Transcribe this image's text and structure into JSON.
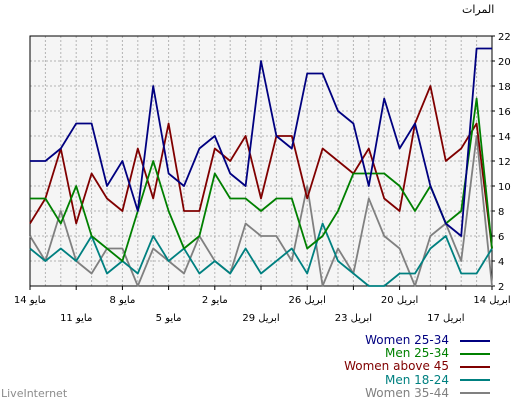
{
  "brand": "LiveInternet",
  "chart_data": {
    "type": "line",
    "ylabel": "المرات",
    "ylim": [
      2,
      22
    ],
    "yticks": [
      2,
      4,
      6,
      8,
      10,
      12,
      14,
      16,
      18,
      20,
      22
    ],
    "y_axis_side": "right",
    "grid": true,
    "legend_position": "bottom-right",
    "x_order": "reverse",
    "x": [
      "2017-05-14",
      "2017-05-13",
      "2017-05-12",
      "2017-05-11",
      "2017-05-10",
      "2017-05-09",
      "2017-05-08",
      "2017-05-07",
      "2017-05-06",
      "2017-05-05",
      "2017-05-04",
      "2017-05-03",
      "2017-05-02",
      "2017-05-01",
      "2017-04-30",
      "2017-04-29",
      "2017-04-28",
      "2017-04-27",
      "2017-04-26",
      "2017-04-25",
      "2017-04-24",
      "2017-04-23",
      "2017-04-22",
      "2017-04-21",
      "2017-04-20",
      "2017-04-19",
      "2017-04-18",
      "2017-04-17",
      "2017-04-16",
      "2017-04-15",
      "2017-04-14"
    ],
    "x_tick_labels": [
      {
        "x": "2017-05-14",
        "label": "14 مايو",
        "row": 1
      },
      {
        "x": "2017-05-11",
        "label": "11 مايو",
        "row": 2
      },
      {
        "x": "2017-05-08",
        "label": "8 مايو",
        "row": 1
      },
      {
        "x": "2017-05-05",
        "label": "5 مايو",
        "row": 2
      },
      {
        "x": "2017-05-02",
        "label": "2 مايو",
        "row": 1
      },
      {
        "x": "2017-04-29",
        "label": "29 ابريل",
        "row": 2
      },
      {
        "x": "2017-04-26",
        "label": "26 ابريل",
        "row": 1
      },
      {
        "x": "2017-04-23",
        "label": "23 ابريل",
        "row": 2
      },
      {
        "x": "2017-04-20",
        "label": "20 ابريل",
        "row": 1
      },
      {
        "x": "2017-04-17",
        "label": "17 ابريل",
        "row": 2
      },
      {
        "x": "2017-04-14",
        "label": "14 ابريل",
        "row": 1
      }
    ],
    "series": [
      {
        "name": "Women 25-34",
        "color": "#000080",
        "values": [
          12,
          12,
          13,
          15,
          15,
          10,
          12,
          8,
          18,
          11,
          10,
          13,
          14,
          11,
          10,
          20,
          14,
          13,
          19,
          19,
          16,
          15,
          10,
          17,
          13,
          15,
          10,
          7,
          6,
          21,
          21
        ]
      },
      {
        "name": "Men 25-34",
        "color": "#008000",
        "values": [
          9,
          9,
          7,
          10,
          6,
          5,
          4,
          8,
          12,
          8,
          5,
          6,
          11,
          9,
          9,
          8,
          9,
          9,
          5,
          6,
          8,
          11,
          11,
          11,
          10,
          8,
          10,
          7,
          8,
          17,
          5
        ]
      },
      {
        "name": "Women above 45",
        "color": "#800000",
        "values": [
          7,
          9,
          13,
          7,
          11,
          9,
          8,
          13,
          9,
          15,
          8,
          8,
          13,
          12,
          14,
          9,
          14,
          14,
          9,
          13,
          12,
          11,
          13,
          9,
          8,
          15,
          18,
          12,
          13,
          15,
          5
        ]
      },
      {
        "name": "Men 18-24",
        "color": "#008080",
        "values": [
          5,
          4,
          5,
          4,
          6,
          3,
          4,
          3,
          6,
          4,
          5,
          3,
          4,
          3,
          5,
          3,
          4,
          5,
          3,
          7,
          4,
          3,
          2,
          2,
          3,
          3,
          5,
          6,
          3,
          3,
          5
        ]
      },
      {
        "name": "Women 35-44",
        "color": "#808080",
        "values": [
          6,
          4,
          8,
          4,
          3,
          5,
          5,
          2,
          5,
          4,
          3,
          6,
          4,
          3,
          7,
          6,
          6,
          4,
          10,
          2,
          5,
          3,
          9,
          6,
          5,
          2,
          6,
          7,
          4,
          14,
          2
        ]
      }
    ]
  }
}
